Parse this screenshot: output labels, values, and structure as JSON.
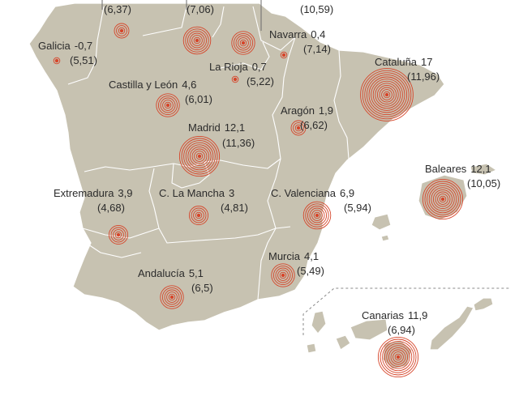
{
  "map": {
    "colors": {
      "land": "#c7c2b1",
      "border": "#ffffff",
      "marker": "#d6452a",
      "text": "#2b2b2b",
      "inset_border": "#8a8a8a"
    },
    "regions": [
      {
        "id": "asturias",
        "name": "",
        "growth": "",
        "value": "(6,37)",
        "rings": 3
      },
      {
        "id": "cantabria",
        "name": "",
        "growth": "",
        "value": "(7,06)",
        "rings": 6
      },
      {
        "id": "pais-vasco",
        "name": "",
        "growth": "",
        "value": "(10,59)",
        "rings": 5
      },
      {
        "id": "galicia",
        "name": "Galicia",
        "growth": "-0,7",
        "value": "(5,51)",
        "rings": 1
      },
      {
        "id": "navarra",
        "name": "Navarra",
        "growth": "0,4",
        "value": "(7,14)",
        "rings": 1
      },
      {
        "id": "la-rioja",
        "name": "La Rioja",
        "growth": "0,7",
        "value": "(5,22)",
        "rings": 1
      },
      {
        "id": "cataluna",
        "name": "Cataluña",
        "growth": "17",
        "value": "(11,96)",
        "rings": 12
      },
      {
        "id": "castilla-leon",
        "name": "Castilla y León",
        "growth": "4,6",
        "value": "(6,01)",
        "rings": 5
      },
      {
        "id": "aragon",
        "name": "Aragón",
        "growth": "1,9",
        "value": "(6,62)",
        "rings": 3
      },
      {
        "id": "madrid",
        "name": "Madrid",
        "growth": "12,1",
        "value": "(11,36)",
        "rings": 9
      },
      {
        "id": "baleares",
        "name": "Baleares",
        "growth": "12,1",
        "value": "(10,05)",
        "rings": 9
      },
      {
        "id": "extremadura",
        "name": "Extremadura",
        "growth": "3,9",
        "value": "(4,68)",
        "rings": 4
      },
      {
        "id": "c-la-mancha",
        "name": "C. La Mancha",
        "growth": "3",
        "value": "(4,81)",
        "rings": 4
      },
      {
        "id": "c-valenciana",
        "name": "C. Valenciana",
        "growth": "6,9",
        "value": "(5,94)",
        "rings": 6
      },
      {
        "id": "murcia",
        "name": "Murcia",
        "growth": "4,1",
        "value": "(5,49)",
        "rings": 5
      },
      {
        "id": "andalucia",
        "name": "Andalucía",
        "growth": "5,1",
        "value": "(6,5)",
        "rings": 5
      },
      {
        "id": "canarias",
        "name": "Canarias",
        "growth": "11,9",
        "value": "(6,94)",
        "rings": 9
      }
    ]
  }
}
